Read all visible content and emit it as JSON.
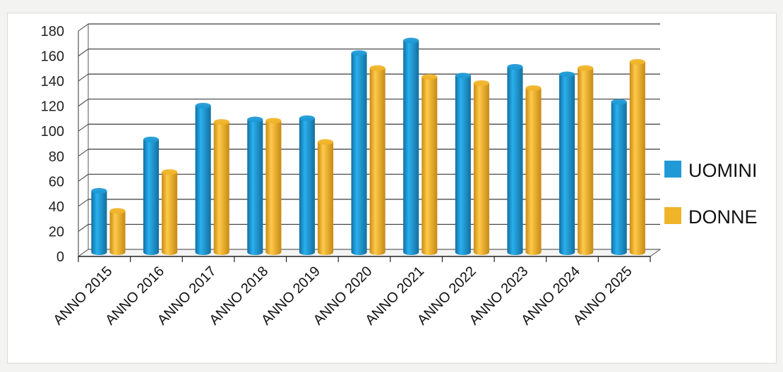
{
  "chart_data": {
    "type": "bar",
    "categories": [
      "ANNO 2015",
      "ANNO 2016",
      "ANNO 2017",
      "ANNO 2018",
      "ANNO 2019",
      "ANNO 2020",
      "ANNO 2021",
      "ANNO 2022",
      "ANNO 2023",
      "ANNO 2024",
      "ANNO 2025"
    ],
    "series": [
      {
        "name": "UOMINI",
        "color": "#1f9ad6",
        "values": [
          49,
          90,
          117,
          106,
          107,
          159,
          169,
          141,
          148,
          142,
          120
        ]
      },
      {
        "name": "DONNE",
        "color": "#f0b429",
        "values": [
          33,
          64,
          104,
          105,
          88,
          147,
          140,
          135,
          131,
          147,
          152
        ]
      }
    ],
    "ylim": [
      0,
      180
    ],
    "yticks": [
      0,
      20,
      40,
      60,
      80,
      100,
      120,
      140,
      160,
      180
    ],
    "grid": true,
    "legend_position": "right",
    "title": "",
    "xlabel": "",
    "ylabel": ""
  }
}
